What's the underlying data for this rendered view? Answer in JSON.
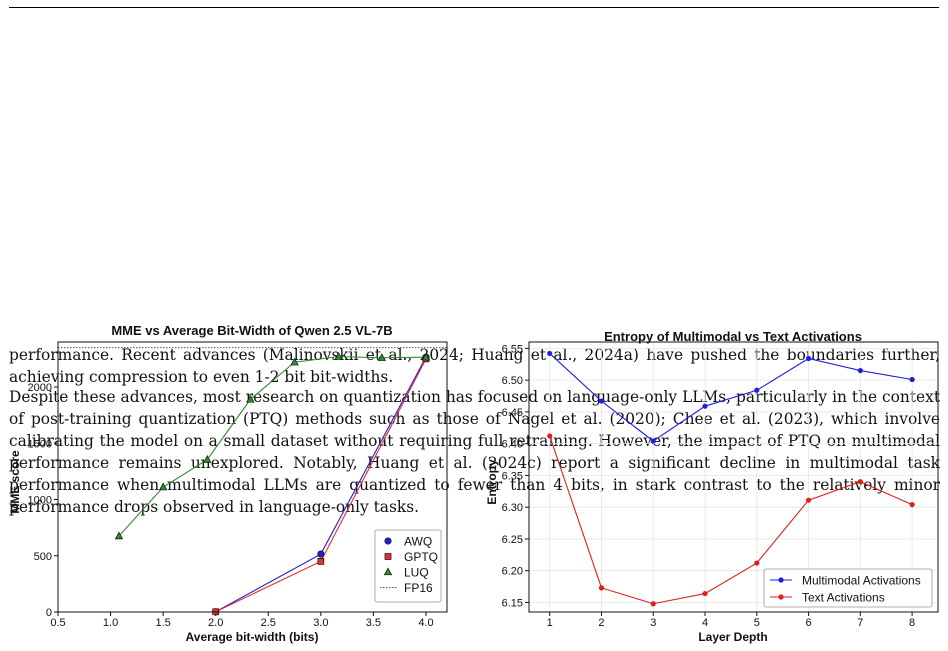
{
  "paragraphs": [
    "performance. Recent advances (Malinovskii et al., 2024; Huang et al., 2024a) have pushed the boundaries further, achieving compression to even 1-2 bit bit-widths.",
    "Despite these advances, most research on quantization has focused on language-only LLMs, particularly in the context of post-training quantization (PTQ) methods such as those of Nagel et al. (2020); Chee et al. (2023), which involve calibrating the model on a small dataset without requiring full retraining. However, the impact of PTQ on multimodal performance remains unexplored. Notably, Huang et al. (2024c) report a significant decline in multimodal task performance when multimodal LLMs are quantized to fewer than 4 bits, in stark contrast to the relatively minor performance drops observed in language-only tasks."
  ],
  "chart_data": [
    {
      "type": "line",
      "title": "MME vs Average Bit-Width of Qwen 2.5 VL-7B",
      "xlabel": "Average bit-width (bits)",
      "ylabel": "MME score",
      "xlim": [
        0.5,
        4.2
      ],
      "ylim": [
        0,
        2400
      ],
      "xticks": [
        0.5,
        1.0,
        1.5,
        2.0,
        2.5,
        3.0,
        3.5,
        4.0
      ],
      "xtick_labels": [
        "0.5",
        "1.0",
        "1.5",
        "2.0",
        "2.5",
        "3.0",
        "3.5",
        "4.0"
      ],
      "yticks": [
        0,
        500,
        1000,
        1500,
        2000
      ],
      "ytick_labels": [
        "0",
        "500",
        "1000",
        "1500",
        "2000"
      ],
      "legend_position": "bottom-right",
      "series": [
        {
          "name": "AWQ",
          "color": "#1f1fd6",
          "marker": "circle",
          "x": [
            2.0,
            3.0,
            4.0
          ],
          "y": [
            2,
            515,
            2265
          ]
        },
        {
          "name": "GPTQ",
          "color": "#e03030",
          "marker": "square",
          "x": [
            2.0,
            3.0,
            4.0
          ],
          "y": [
            2,
            450,
            2250
          ]
        },
        {
          "name": "LUQ",
          "color": "#2e8b2e",
          "marker": "triangle",
          "x": [
            1.08,
            1.5,
            1.92,
            2.33,
            2.75,
            3.17,
            3.58,
            4.0
          ],
          "y": [
            675,
            1110,
            1355,
            1890,
            2220,
            2270,
            2260,
            2265
          ]
        }
      ],
      "reference": {
        "name": "FP16",
        "y": 2350,
        "color": "#555555",
        "style": "dotted"
      }
    },
    {
      "type": "line",
      "title": "Entropy of Multimodal vs Text Activations",
      "xlabel": "Layer Depth",
      "ylabel": "Entropy",
      "xlim": [
        0.6,
        8.5
      ],
      "ylim": [
        6.135,
        6.56
      ],
      "xticks": [
        1,
        2,
        3,
        4,
        5,
        6,
        7,
        8
      ],
      "xtick_labels": [
        "1",
        "2",
        "3",
        "4",
        "5",
        "6",
        "7",
        "8"
      ],
      "yticks": [
        6.15,
        6.2,
        6.25,
        6.3,
        6.35,
        6.4,
        6.45,
        6.5,
        6.55
      ],
      "ytick_labels": [
        "6.15",
        "6.20",
        "6.25",
        "6.30",
        "6.35",
        "6.40",
        "6.45",
        "6.50",
        "6.55"
      ],
      "legend_position": "bottom-right",
      "grid": true,
      "series": [
        {
          "name": "Multimodal Activations",
          "color": "#1f1fe0",
          "x": [
            1,
            2,
            3,
            4,
            5,
            6,
            7,
            8
          ],
          "y": [
            6.542,
            6.467,
            6.404,
            6.459,
            6.484,
            6.534,
            6.515,
            6.501
          ]
        },
        {
          "name": "Text Activations",
          "color": "#e01f1f",
          "x": [
            1,
            2,
            3,
            4,
            5,
            6,
            7,
            8
          ],
          "y": [
            6.412,
            6.173,
            6.148,
            6.164,
            6.212,
            6.311,
            6.34,
            6.304
          ]
        }
      ]
    }
  ]
}
